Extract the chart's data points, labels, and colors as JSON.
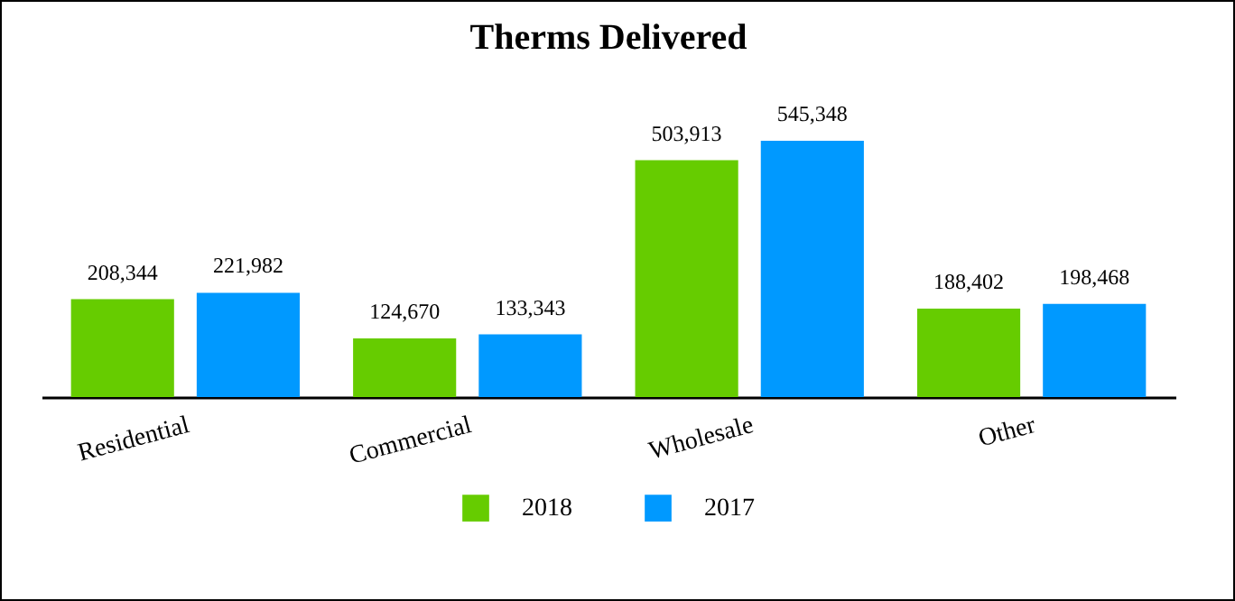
{
  "chart_data": {
    "type": "bar",
    "title": "Therms Delivered",
    "categories": [
      "Residential",
      "Commercial",
      "Wholesale",
      "Other"
    ],
    "series": [
      {
        "name": "2018",
        "color": "#66cc00",
        "values": [
          208344,
          124670,
          503913,
          188402
        ],
        "value_labels": [
          "208,344",
          "124,670",
          "503,913",
          "188,402"
        ]
      },
      {
        "name": "2017",
        "color": "#0099ff",
        "values": [
          221982,
          133343,
          545348,
          198468
        ],
        "value_labels": [
          "221,982",
          "133,343",
          "545,348",
          "198,468"
        ]
      }
    ],
    "legend": "bottom"
  }
}
